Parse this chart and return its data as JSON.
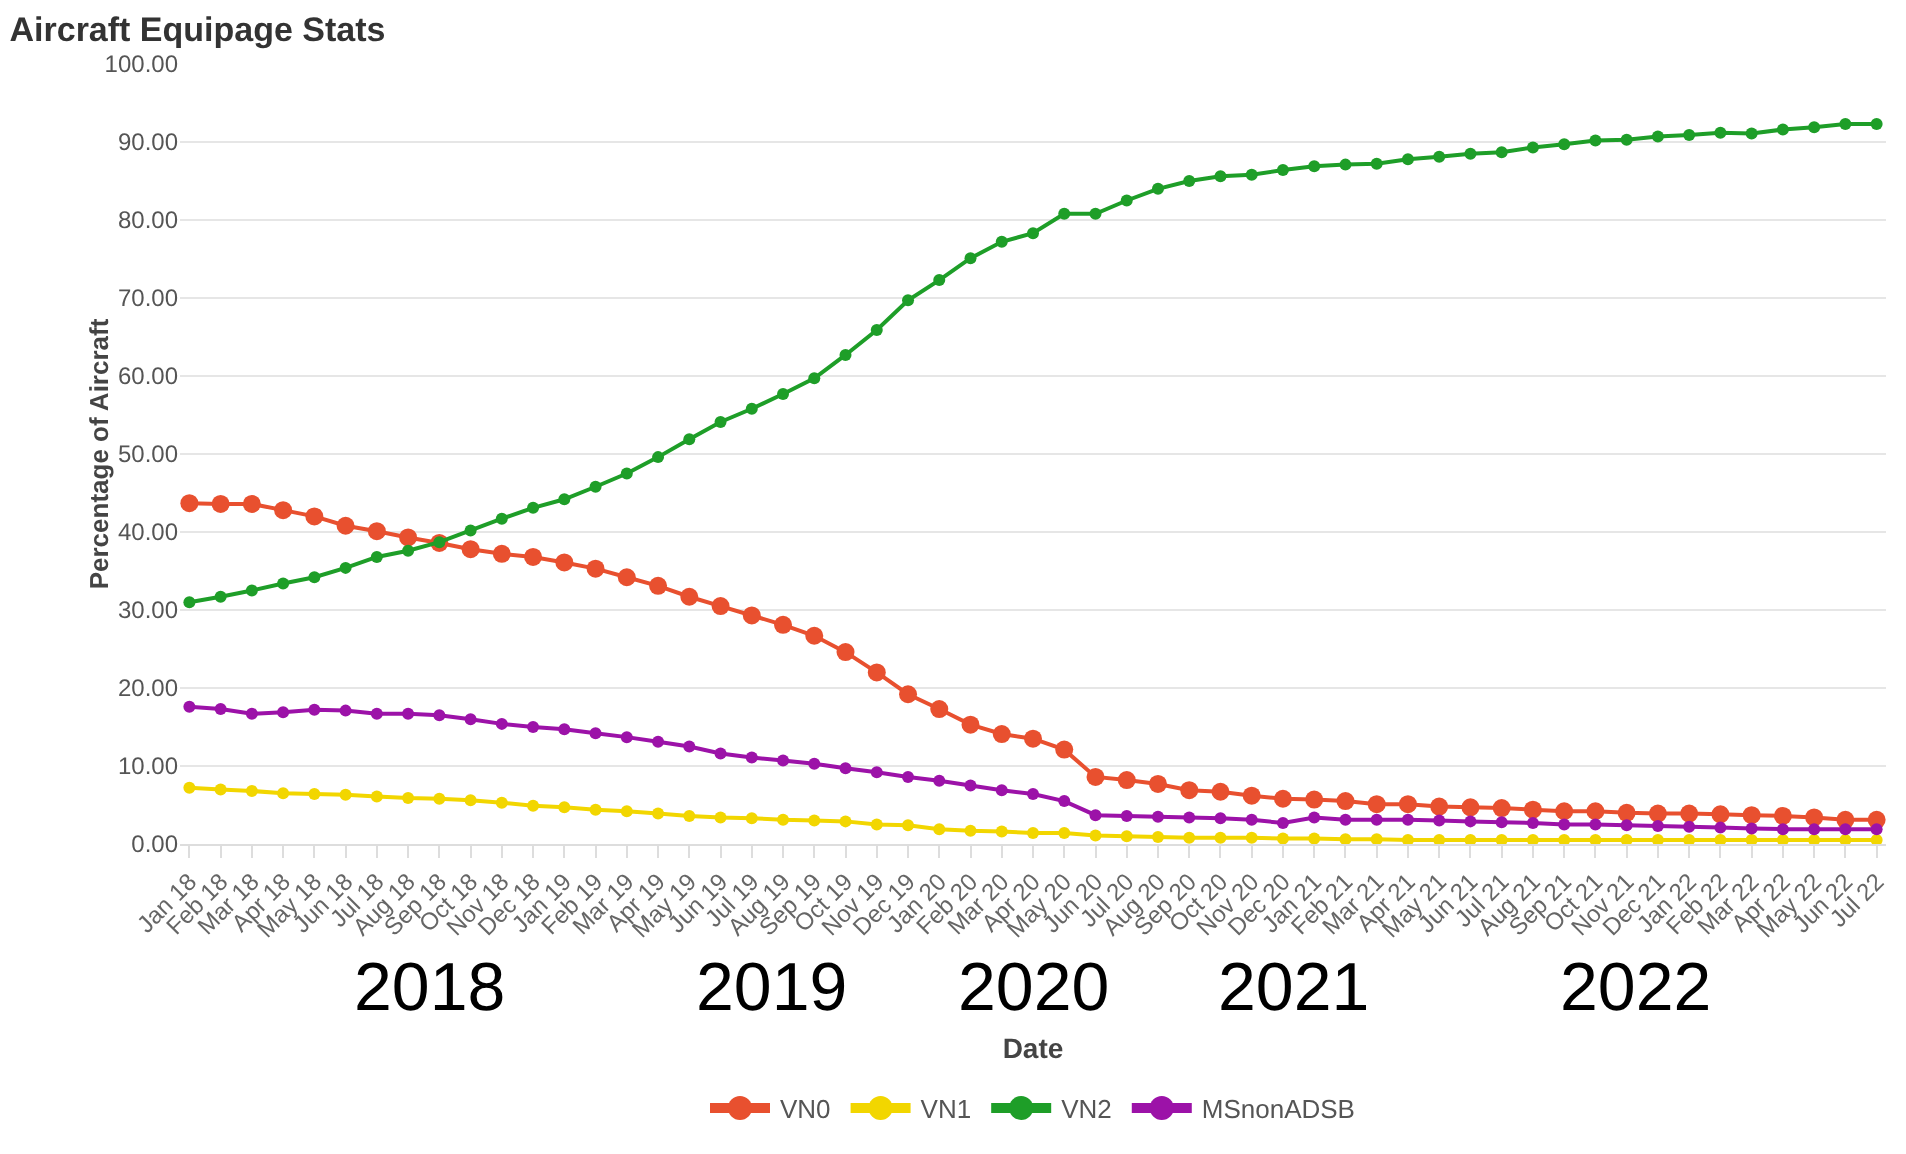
{
  "chart_data": {
    "type": "line",
    "title": "Aircraft Equipage Stats",
    "xlabel": "Date",
    "ylabel": "Percentage of Aircraft",
    "categories": [
      "Jan 18",
      "Feb 18",
      "Mar 18",
      "Apr 18",
      "May 18",
      "Jun 18",
      "Jul 18",
      "Aug 18",
      "Sep 18",
      "Oct 18",
      "Nov 18",
      "Dec 18",
      "Jan 19",
      "Feb 19",
      "Mar 19",
      "Apr 19",
      "May 19",
      "Jun 19",
      "Jul 19",
      "Aug 19",
      "Sep 19",
      "Oct 19",
      "Nov 19",
      "Dec 19",
      "Jan 20",
      "Feb 20",
      "Mar 20",
      "Apr 20",
      "May 20",
      "Jun 20",
      "Jul 20",
      "Aug 20",
      "Sep 20",
      "Oct 20",
      "Nov 20",
      "Dec 20",
      "Jan 21",
      "Feb 21",
      "Mar 21",
      "Apr 21",
      "May 21",
      "Jun 21",
      "Jul 21",
      "Aug 21",
      "Sep 21",
      "Oct 21",
      "Nov 21",
      "Dec 21",
      "Jan 22",
      "Feb 22",
      "Mar 22",
      "Apr 22",
      "May 22",
      "Jun 22",
      "Jul 22"
    ],
    "series": [
      {
        "name": "VN0",
        "color": "#e8502f",
        "values": [
          43.7,
          43.6,
          43.6,
          42.8,
          42.0,
          40.8,
          40.1,
          39.3,
          38.6,
          37.8,
          37.2,
          36.8,
          36.1,
          35.3,
          34.2,
          33.1,
          31.7,
          30.5,
          29.3,
          28.1,
          26.7,
          24.6,
          22.0,
          19.2,
          17.3,
          15.3,
          14.1,
          13.5,
          12.1,
          8.6,
          8.2,
          7.7,
          6.9,
          6.7,
          6.2,
          5.8,
          5.7,
          5.5,
          5.1,
          5.1,
          4.8,
          4.7,
          4.6,
          4.4,
          4.2,
          4.2,
          4.0,
          3.9,
          3.9,
          3.8,
          3.7,
          3.6,
          3.4,
          3.1,
          3.1
        ]
      },
      {
        "name": "VN1",
        "color": "#f2d600",
        "values": [
          7.2,
          7.0,
          6.8,
          6.5,
          6.4,
          6.3,
          6.1,
          5.9,
          5.8,
          5.6,
          5.3,
          4.9,
          4.7,
          4.4,
          4.2,
          3.9,
          3.6,
          3.4,
          3.3,
          3.1,
          3.0,
          2.9,
          2.5,
          2.4,
          1.9,
          1.7,
          1.6,
          1.4,
          1.4,
          1.1,
          1.0,
          0.9,
          0.8,
          0.8,
          0.8,
          0.7,
          0.7,
          0.6,
          0.6,
          0.5,
          0.5,
          0.5,
          0.5,
          0.5,
          0.5,
          0.5,
          0.5,
          0.5,
          0.5,
          0.5,
          0.5,
          0.5,
          0.5,
          0.5,
          0.5
        ]
      },
      {
        "name": "VN2",
        "color": "#1e9e28",
        "values": [
          31.0,
          31.7,
          32.5,
          33.4,
          34.2,
          35.4,
          36.8,
          37.6,
          38.7,
          40.2,
          41.7,
          43.1,
          44.2,
          45.8,
          47.5,
          49.6,
          51.9,
          54.1,
          55.8,
          57.7,
          59.7,
          62.7,
          65.9,
          69.7,
          72.3,
          75.1,
          77.2,
          78.3,
          80.8,
          80.8,
          82.5,
          84.0,
          85.0,
          85.6,
          85.8,
          86.4,
          86.9,
          87.1,
          87.2,
          87.8,
          88.1,
          88.5,
          88.7,
          89.3,
          89.7,
          90.2,
          90.3,
          90.7,
          90.9,
          91.2,
          91.1,
          91.6,
          91.9,
          92.3,
          92.3
        ]
      },
      {
        "name": "MSnonADSB",
        "color": "#9c12a8",
        "values": [
          17.6,
          17.3,
          16.7,
          16.9,
          17.2,
          17.1,
          16.7,
          16.7,
          16.5,
          16.0,
          15.4,
          15.0,
          14.7,
          14.2,
          13.7,
          13.1,
          12.5,
          11.6,
          11.1,
          10.7,
          10.3,
          9.7,
          9.2,
          8.6,
          8.1,
          7.5,
          6.9,
          6.4,
          5.5,
          3.7,
          3.6,
          3.5,
          3.4,
          3.3,
          3.1,
          2.7,
          3.4,
          3.1,
          3.1,
          3.1,
          3.0,
          2.9,
          2.8,
          2.7,
          2.5,
          2.5,
          2.4,
          2.3,
          2.2,
          2.1,
          2.0,
          1.9,
          1.9,
          1.9,
          1.9
        ]
      }
    ],
    "ylim": [
      0,
      100
    ],
    "yticks": [
      {
        "value": 0,
        "label": "0.00"
      },
      {
        "value": 10,
        "label": "10.00"
      },
      {
        "value": 20,
        "label": "20.00"
      },
      {
        "value": 30,
        "label": "30.00"
      },
      {
        "value": 40,
        "label": "40.00"
      },
      {
        "value": 50,
        "label": "50.00"
      },
      {
        "value": 60,
        "label": "60.00"
      },
      {
        "value": 70,
        "label": "70.00"
      },
      {
        "value": 80,
        "label": "80.00"
      },
      {
        "value": 90,
        "label": "90.00"
      },
      {
        "value": 100,
        "label": "100.00"
      }
    ],
    "grid": "y",
    "legend": "bottom",
    "marker": "circle",
    "line_style": "solid",
    "annotations": [
      "2018",
      "2019",
      "2020",
      "2021",
      "2022"
    ]
  }
}
